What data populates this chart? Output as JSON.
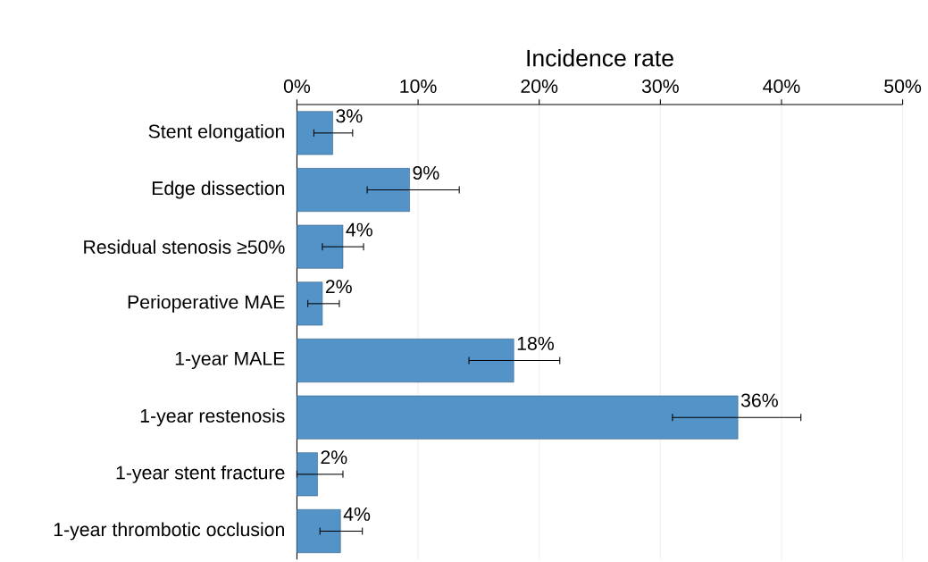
{
  "chart_data": {
    "type": "bar",
    "orientation": "horizontal",
    "xlabel": "Incidence rate",
    "categories": [
      "Stent elongation",
      "Edge dissection",
      "Residual stenosis ≥50%",
      "Perioperative MAE",
      "1-year MALE",
      "1-year restenosis",
      "1-year stent fracture",
      "1-year thrombotic occlusion"
    ],
    "values": [
      2.96,
      9.3,
      3.8,
      2.1,
      17.9,
      36.4,
      1.7,
      3.6
    ],
    "errors": [
      [
        1.4,
        4.6
      ],
      [
        5.8,
        13.4
      ],
      [
        2.1,
        5.5
      ],
      [
        0.9,
        3.5
      ],
      [
        14.2,
        21.7
      ],
      [
        31.0,
        41.6
      ],
      [
        0.0,
        3.8
      ],
      [
        1.9,
        5.4
      ]
    ],
    "value_labels": [
      "3%",
      "9%",
      "4%",
      "2%",
      "18%",
      "36%",
      "2%",
      "4%"
    ],
    "color": "#5393c8",
    "xlim": [
      0,
      50
    ],
    "xticks": [
      {
        "value": 0,
        "label": "0%"
      },
      {
        "value": 10,
        "label": "10%"
      },
      {
        "value": 20,
        "label": "20%"
      },
      {
        "value": 30,
        "label": "30%"
      },
      {
        "value": 40,
        "label": "40%"
      },
      {
        "value": 50,
        "label": "50%"
      }
    ],
    "grid": "x"
  }
}
